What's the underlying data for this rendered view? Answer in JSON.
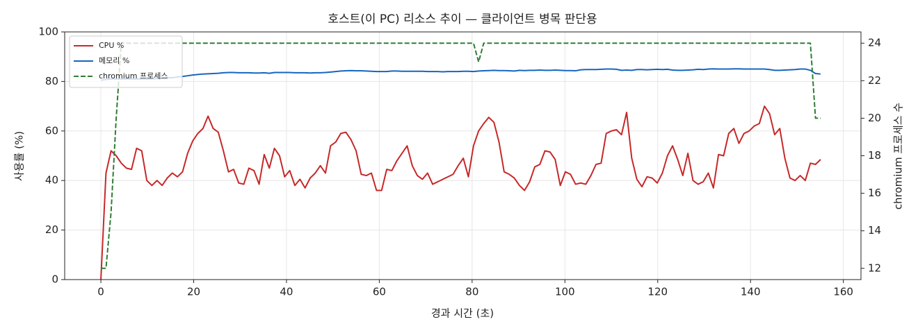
{
  "chart_data": {
    "type": "line",
    "title": "호스트(이 PC) 리소스 추이 — 클라이언트 병목 판단용",
    "xlabel": "경과 시간 (초)",
    "ylabel": "사용률 (%)",
    "y2label": "chromium 프로세스 수",
    "x": [
      0,
      1.1,
      2.2,
      3.3,
      4.4,
      5.5,
      6.6,
      7.7,
      8.8,
      9.9,
      11,
      12.1,
      13.2,
      14.3,
      15.4,
      16.5,
      17.6,
      18.7,
      19.8,
      20.9,
      22,
      23.1,
      24.2,
      25.3,
      26.4,
      27.5,
      28.6,
      29.7,
      30.8,
      31.9,
      33,
      34.1,
      35.2,
      36.3,
      37.4,
      38.5,
      39.6,
      40.7,
      41.8,
      42.9,
      44,
      45.1,
      46.2,
      47.3,
      48.4,
      49.5,
      50.6,
      51.7,
      52.8,
      53.9,
      55,
      56.1,
      57.2,
      58.3,
      59.4,
      60.5,
      61.6,
      62.7,
      63.8,
      64.9,
      66,
      67.1,
      68.2,
      69.3,
      70.4,
      71.5,
      72.6,
      73.7,
      74.8,
      75.9,
      77,
      78.1,
      79.2,
      80.3,
      81.4,
      82.5,
      83.6,
      84.7,
      85.8,
      86.9,
      88,
      89.1,
      90.2,
      91.3,
      92.4,
      93.5,
      94.6,
      95.7,
      96.8,
      97.9,
      99,
      100.1,
      101.2,
      102.3,
      103.4,
      104.5,
      105.6,
      106.7,
      107.8,
      108.9,
      110,
      111.1,
      112.2,
      113.3,
      114.4,
      115.5,
      116.6,
      117.7,
      118.8,
      119.9,
      121,
      122.1,
      123.2,
      124.3,
      125.4,
      126.5,
      127.6,
      128.7,
      129.8,
      130.9,
      132,
      133.1,
      134.2,
      135.3,
      136.4,
      137.5,
      138.6,
      139.7,
      140.8,
      141.9,
      143,
      144.1,
      145.2,
      146.3,
      147.4,
      148.5,
      149.6,
      150.7,
      151.8,
      152.9,
      154,
      155.1
    ],
    "series": [
      {
        "name": "CPU %",
        "color": "#c62828",
        "linestyle": "solid",
        "values": [
          0,
          43,
          52,
          50,
          47,
          45,
          44.5,
          53,
          52,
          40,
          38,
          40,
          38,
          41,
          43,
          41.5,
          43.5,
          51,
          56,
          59,
          61,
          66,
          61,
          59.5,
          52,
          43.5,
          44.5,
          39,
          38.5,
          45,
          44,
          38.5,
          50.5,
          45,
          53,
          50,
          41.5,
          44,
          38,
          40.5,
          37,
          41,
          43,
          46,
          43,
          54,
          55.5,
          59,
          59.5,
          56.5,
          52,
          42.5,
          42,
          43,
          36,
          36,
          44.5,
          44,
          48,
          51,
          54,
          46,
          42,
          40.5,
          43,
          38.5,
          39.5,
          40.5,
          41.5,
          42.5,
          46,
          49,
          41.5,
          54,
          60,
          63,
          65.5,
          63.5,
          55.5,
          43.5,
          42.5,
          41,
          38,
          36,
          39.5,
          45.5,
          46.5,
          52,
          51.5,
          48.5,
          38,
          43.5,
          42.5,
          38.5,
          39,
          38.5,
          42,
          46.5,
          47,
          59,
          60,
          60.5,
          58.5,
          67.5,
          49,
          40.5,
          37.5,
          41.5,
          41,
          39,
          43,
          50,
          54,
          48.5,
          42,
          51,
          40,
          38.5,
          39.5,
          43,
          37,
          50.5,
          50,
          59,
          61,
          55,
          59,
          60,
          62,
          63,
          70,
          67,
          58.5,
          61,
          49,
          41,
          40,
          42,
          40,
          47,
          46.5,
          48.5
        ]
      },
      {
        "name": "메모리 %",
        "color": "#1565c0",
        "linestyle": "solid",
        "values": [
          80.5,
          80.8,
          81,
          81,
          81,
          81,
          81,
          81,
          81,
          81,
          81,
          81.2,
          81.3,
          81.5,
          81.5,
          81.8,
          82,
          82.3,
          82.6,
          82.8,
          83,
          83.1,
          83.2,
          83.3,
          83.5,
          83.6,
          83.6,
          83.5,
          83.5,
          83.5,
          83.4,
          83.4,
          83.5,
          83.3,
          83.6,
          83.6,
          83.6,
          83.6,
          83.5,
          83.5,
          83.5,
          83.4,
          83.5,
          83.5,
          83.6,
          83.8,
          84,
          84.2,
          84.3,
          84.4,
          84.3,
          84.3,
          84.2,
          84.1,
          84,
          84,
          84,
          84.2,
          84.2,
          84.1,
          84.1,
          84.1,
          84.1,
          84.1,
          84,
          84,
          84,
          83.9,
          84,
          84,
          84,
          84.1,
          84.1,
          84,
          84.2,
          84.3,
          84.4,
          84.5,
          84.4,
          84.4,
          84.3,
          84.2,
          84.5,
          84.4,
          84.5,
          84.5,
          84.6,
          84.5,
          84.5,
          84.6,
          84.5,
          84.4,
          84.4,
          84.3,
          84.7,
          84.8,
          84.8,
          84.8,
          84.9,
          85,
          85,
          84.9,
          84.5,
          84.6,
          84.5,
          84.8,
          84.8,
          84.7,
          84.8,
          84.9,
          84.8,
          84.9,
          84.6,
          84.5,
          84.5,
          84.6,
          84.7,
          84.9,
          84.8,
          85,
          85.1,
          85,
          85,
          85,
          85.1,
          85.1,
          85,
          85,
          85,
          85,
          85,
          84.8,
          84.5,
          84.5,
          84.6,
          84.7,
          84.8,
          85,
          85,
          84.5,
          83.2,
          83
        ]
      },
      {
        "name": "chromium 프로세스",
        "color": "#2e7d32",
        "linestyle": "dashed",
        "axis": "y2",
        "values": [
          12,
          12,
          15,
          20,
          24,
          24,
          24,
          24,
          24,
          24,
          24,
          24,
          24,
          24,
          24,
          24,
          24,
          24,
          24,
          24,
          24,
          24,
          24,
          24,
          24,
          24,
          24,
          24,
          24,
          24,
          24,
          24,
          24,
          24,
          24,
          24,
          24,
          24,
          24,
          24,
          24,
          24,
          24,
          24,
          24,
          24,
          24,
          24,
          24,
          24,
          24,
          24,
          24,
          24,
          24,
          24,
          24,
          24,
          24,
          24,
          24,
          24,
          24,
          24,
          24,
          24,
          24,
          24,
          24,
          24,
          24,
          24,
          24,
          24,
          23,
          24,
          24,
          24,
          24,
          24,
          24,
          24,
          24,
          24,
          24,
          24,
          24,
          24,
          24,
          24,
          24,
          24,
          24,
          24,
          24,
          24,
          24,
          24,
          24,
          24,
          24,
          24,
          24,
          24,
          24,
          24,
          24,
          24,
          24,
          24,
          24,
          24,
          24,
          24,
          24,
          24,
          24,
          24,
          24,
          24,
          24,
          24,
          24,
          24,
          24,
          24,
          24,
          24,
          24,
          24,
          24,
          24,
          24,
          24,
          24,
          24,
          24,
          24,
          24,
          24,
          20,
          20
        ]
      }
    ],
    "xlim": [
      -7.8,
      163.8
    ],
    "xticks": [
      0,
      20,
      40,
      60,
      80,
      100,
      120,
      140,
      160
    ],
    "ylim": [
      0,
      100
    ],
    "yticks": [
      0,
      20,
      40,
      60,
      80,
      100
    ],
    "y2lim": [
      11.4,
      24.6
    ],
    "y2ticks": [
      12,
      14,
      16,
      18,
      20,
      22,
      24
    ],
    "grid": true,
    "legend": "upper left"
  }
}
